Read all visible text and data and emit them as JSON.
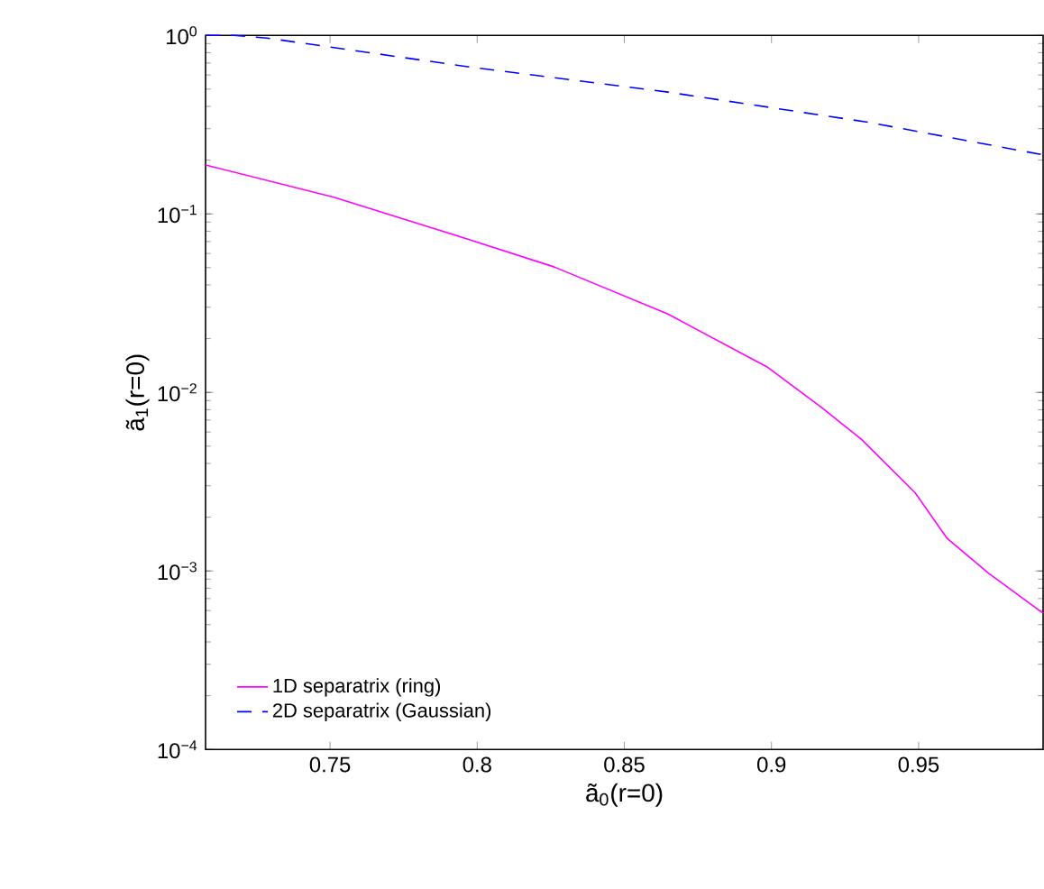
{
  "chart_data": {
    "type": "line",
    "xlabel": "ã$_{0}$(r=0)",
    "ylabel": "ã$_{1}$(r=0)",
    "xlim": [
      0.7077,
      0.9923
    ],
    "xticks": [
      0.75,
      0.8,
      0.85,
      0.9,
      0.95
    ],
    "ylim": [
      0.0001,
      1
    ],
    "yticks": [
      {
        "value": 0.0001,
        "label": "10$^{−4}$"
      },
      {
        "value": 0.001,
        "label": "10$^{−3}$"
      },
      {
        "value": 0.01,
        "label": "10$^{−2}$"
      },
      {
        "value": 0.1,
        "label": "10$^{−1}$"
      },
      {
        "value": 1,
        "label": "10$^{0}$"
      }
    ],
    "log": "y",
    "grid": false,
    "legend": "bottom left",
    "series": [
      {
        "name": "1D separatrix (ring)",
        "color": "#ff00ff",
        "line_style": "solid",
        "x": [
          0.7077,
          0.7513,
          0.7968,
          0.8262,
          0.8648,
          0.8988,
          0.917,
          0.9306,
          0.9488,
          0.9597,
          0.9737,
          0.9923
        ],
        "values": [
          0.188,
          0.124,
          0.0722,
          0.0504,
          0.0275,
          0.0138,
          0.00824,
          0.00545,
          0.00274,
          0.00152,
          0.000973,
          0.00058
        ]
      },
      {
        "name": "2D separatrix (Gaussian)",
        "color": "#0000ff",
        "line_style": "dashed",
        "x": [
          0.7077,
          0.7173,
          0.7286,
          0.7968,
          0.8648,
          0.9329,
          0.9923
        ],
        "values": [
          1.0,
          1.0,
          0.966,
          0.667,
          0.481,
          0.326,
          0.214
        ]
      }
    ]
  }
}
